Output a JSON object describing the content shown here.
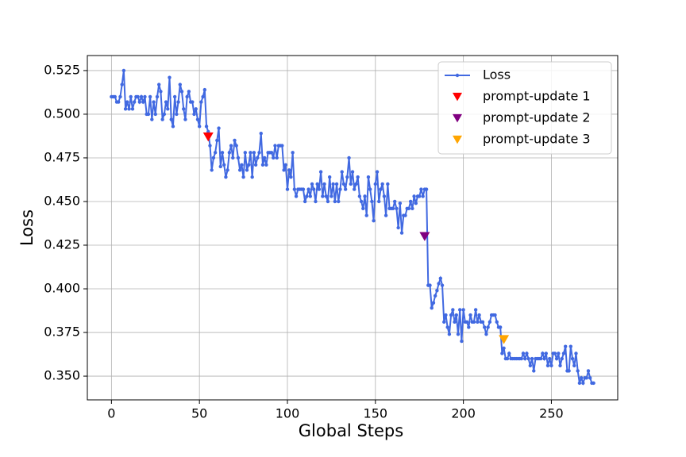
{
  "chart_data": {
    "type": "line",
    "xlabel": "Global Steps",
    "ylabel": "Loss",
    "xlim": [
      -13.7,
      287.7
    ],
    "ylim": [
      0.3364,
      0.5336
    ],
    "xticks": [
      0,
      50,
      100,
      150,
      200,
      250
    ],
    "yticks": [
      {
        "value": 0.35,
        "label": "0.350"
      },
      0.375,
      {
        "value": 0.4,
        "label": "0.400"
      },
      0.425,
      {
        "value": 0.45,
        "label": "0.450"
      },
      0.475,
      {
        "value": 0.5,
        "label": "0.500"
      },
      0.525
    ],
    "grid": true,
    "legend": "upper right",
    "series": [
      {
        "name": "Loss",
        "color": "#4169e1",
        "marker": "o",
        "x": [
          0,
          1,
          2,
          3,
          4,
          5,
          6,
          7,
          8,
          9,
          10,
          11,
          12,
          13,
          14,
          15,
          16,
          17,
          18,
          19,
          20,
          21,
          22,
          23,
          24,
          25,
          26,
          27,
          28,
          29,
          30,
          31,
          32,
          33,
          34,
          35,
          36,
          37,
          38,
          39,
          40,
          41,
          42,
          43,
          44,
          45,
          46,
          47,
          48,
          49,
          50,
          51,
          52,
          53,
          54,
          55,
          56,
          57,
          58,
          59,
          60,
          61,
          62,
          63,
          64,
          65,
          66,
          67,
          68,
          69,
          70,
          71,
          72,
          73,
          74,
          75,
          76,
          77,
          78,
          79,
          80,
          81,
          82,
          83,
          84,
          85,
          86,
          87,
          88,
          89,
          90,
          91,
          92,
          93,
          94,
          95,
          96,
          97,
          98,
          99,
          100,
          101,
          102,
          103,
          104,
          105,
          106,
          107,
          108,
          109,
          110,
          111,
          112,
          113,
          114,
          115,
          116,
          117,
          118,
          119,
          120,
          121,
          122,
          123,
          124,
          125,
          126,
          127,
          128,
          129,
          130,
          131,
          132,
          133,
          134,
          135,
          136,
          137,
          138,
          139,
          140,
          141,
          142,
          143,
          144,
          145,
          146,
          147,
          148,
          149,
          150,
          151,
          152,
          153,
          154,
          155,
          156,
          157,
          158,
          159,
          160,
          161,
          162,
          163,
          164,
          165,
          166,
          167,
          168,
          169,
          170,
          171,
          172,
          173,
          174,
          175,
          176,
          177,
          178,
          179,
          180,
          181,
          182,
          183,
          184,
          185,
          186,
          187,
          188,
          189,
          190,
          191,
          192,
          193,
          194,
          195,
          196,
          197,
          198,
          199,
          200,
          201,
          202,
          203,
          204,
          205,
          206,
          207,
          208,
          209,
          210,
          211,
          212,
          213,
          214,
          215,
          216,
          217,
          218,
          219,
          220,
          221,
          222,
          223,
          224,
          225,
          226,
          227,
          228,
          229,
          230,
          231,
          232,
          233,
          234,
          235,
          236,
          237,
          238,
          239,
          240,
          241,
          242,
          243,
          244,
          245,
          246,
          247,
          248,
          249,
          250,
          251,
          252,
          253,
          254,
          255,
          256,
          257,
          258,
          259,
          260,
          261,
          262,
          263,
          264,
          265,
          266,
          267,
          268,
          269,
          270,
          271,
          272,
          273,
          274
        ],
        "values": [
          0.51,
          0.51,
          0.51,
          0.507,
          0.507,
          0.51,
          0.517,
          0.525,
          0.503,
          0.507,
          0.503,
          0.51,
          0.503,
          0.507,
          0.51,
          0.51,
          0.507,
          0.51,
          0.507,
          0.51,
          0.5,
          0.5,
          0.51,
          0.497,
          0.507,
          0.5,
          0.51,
          0.517,
          0.513,
          0.497,
          0.5,
          0.507,
          0.503,
          0.521,
          0.497,
          0.493,
          0.51,
          0.5,
          0.507,
          0.517,
          0.513,
          0.503,
          0.497,
          0.51,
          0.513,
          0.507,
          0.507,
          0.5,
          0.503,
          0.497,
          0.493,
          0.507,
          0.51,
          0.514,
          0.493,
          0.49,
          0.482,
          0.468,
          0.475,
          0.478,
          0.485,
          0.492,
          0.47,
          0.478,
          0.471,
          0.464,
          0.468,
          0.478,
          0.482,
          0.475,
          0.485,
          0.482,
          0.475,
          0.468,
          0.471,
          0.464,
          0.478,
          0.468,
          0.471,
          0.478,
          0.464,
          0.478,
          0.471,
          0.475,
          0.478,
          0.489,
          0.471,
          0.475,
          0.471,
          0.478,
          0.478,
          0.478,
          0.475,
          0.482,
          0.475,
          0.482,
          0.482,
          0.482,
          0.468,
          0.471,
          0.457,
          0.468,
          0.464,
          0.478,
          0.457,
          0.453,
          0.457,
          0.457,
          0.457,
          0.457,
          0.45,
          0.453,
          0.457,
          0.453,
          0.46,
          0.457,
          0.45,
          0.46,
          0.457,
          0.467,
          0.453,
          0.46,
          0.453,
          0.45,
          0.464,
          0.453,
          0.46,
          0.45,
          0.46,
          0.45,
          0.457,
          0.467,
          0.46,
          0.457,
          0.464,
          0.475,
          0.46,
          0.467,
          0.457,
          0.46,
          0.464,
          0.453,
          0.45,
          0.446,
          0.453,
          0.442,
          0.464,
          0.457,
          0.45,
          0.439,
          0.46,
          0.467,
          0.45,
          0.457,
          0.46,
          0.453,
          0.442,
          0.46,
          0.446,
          0.446,
          0.446,
          0.45,
          0.446,
          0.435,
          0.449,
          0.432,
          0.442,
          0.442,
          0.446,
          0.446,
          0.45,
          0.446,
          0.453,
          0.449,
          0.453,
          0.453,
          0.457,
          0.453,
          0.457,
          0.457,
          0.402,
          0.402,
          0.389,
          0.392,
          0.396,
          0.399,
          0.403,
          0.406,
          0.402,
          0.381,
          0.385,
          0.378,
          0.374,
          0.385,
          0.388,
          0.381,
          0.385,
          0.374,
          0.388,
          0.37,
          0.388,
          0.381,
          0.381,
          0.378,
          0.385,
          0.381,
          0.381,
          0.388,
          0.381,
          0.385,
          0.381,
          0.381,
          0.378,
          0.374,
          0.378,
          0.381,
          0.385,
          0.385,
          0.385,
          0.381,
          0.378,
          0.378,
          0.363,
          0.366,
          0.36,
          0.36,
          0.363,
          0.36,
          0.36,
          0.36,
          0.36,
          0.36,
          0.36,
          0.36,
          0.363,
          0.36,
          0.363,
          0.36,
          0.356,
          0.36,
          0.353,
          0.36,
          0.36,
          0.36,
          0.36,
          0.363,
          0.36,
          0.363,
          0.356,
          0.36,
          0.356,
          0.363,
          0.363,
          0.36,
          0.363,
          0.356,
          0.36,
          0.363,
          0.367,
          0.353,
          0.353,
          0.367,
          0.36,
          0.356,
          0.363,
          0.353,
          0.346,
          0.349,
          0.346,
          0.349,
          0.349,
          0.353,
          0.349,
          0.346,
          0.346
        ]
      },
      {
        "name": "prompt-update 1",
        "color": "red",
        "marker": "v",
        "x": [
          55
        ],
        "values": [
          0.487
        ]
      },
      {
        "name": "prompt-update 2",
        "color": "purple",
        "marker": "v",
        "x": [
          178
        ],
        "values": [
          0.43
        ]
      },
      {
        "name": "prompt-update 3",
        "color": "orange",
        "marker": "v",
        "x": [
          223
        ],
        "values": [
          0.371
        ]
      }
    ]
  }
}
